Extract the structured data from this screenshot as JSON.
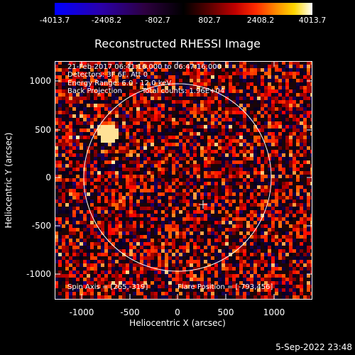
{
  "colorbar": {
    "ticks": [
      "-4013.7",
      "-2408.2",
      "-802.7",
      "802.7",
      "2408.2",
      "4013.7"
    ]
  },
  "title": "Reconstructed RHESSI Image",
  "info": {
    "time_range": "21-Feb-2017 06:41:16.000 to 06:47:16.000",
    "detectors": "Detectors: 3F 6F, Att 0",
    "energy": "Energy Range: 6.0 - 12.0 keV",
    "method": "Back Projection",
    "counts": "Total counts: 1.96E+04",
    "spin_axis": "Spin Axis = [265,-319]",
    "flare_position": "Flare Position = [-793,456]"
  },
  "axes": {
    "xlabel": "Heliocentric X (arcsec)",
    "ylabel": "Heliocentric Y (arcsec)",
    "xticks": [
      "-1000",
      "-500",
      "0",
      "500",
      "1000"
    ],
    "yticks": [
      "1000",
      "500",
      "0",
      "-500",
      "-1000"
    ]
  },
  "timestamp": "5-Sep-2022 23:48"
}
